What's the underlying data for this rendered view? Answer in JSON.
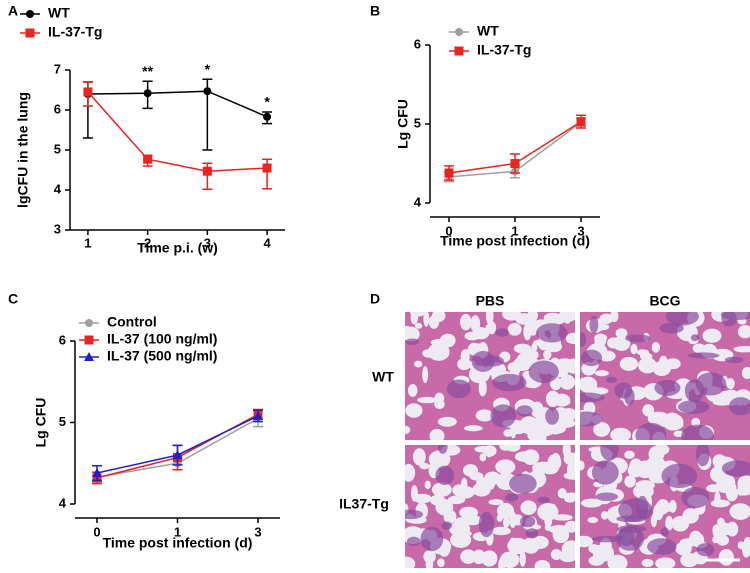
{
  "chart_data": [
    {
      "type": "line",
      "panel": "A",
      "x": [
        1,
        2,
        3,
        4
      ],
      "xlim": [
        0.7,
        4.3
      ],
      "xticks": [
        1,
        2,
        3,
        4
      ],
      "ylim": [
        3,
        7
      ],
      "yticks": [
        3,
        4,
        5,
        6,
        7
      ],
      "xlabel": "Time p.i. (w)",
      "ylabel": "lgCFU in the lung",
      "series": [
        {
          "name": "WT",
          "color": "#000000",
          "marker": "circle",
          "values": [
            6.4,
            6.42,
            6.47,
            5.83
          ],
          "error_low": [
            1.1,
            0.38,
            1.47,
            0.17
          ],
          "error_high": [
            0.3,
            0.3,
            0.3,
            0.12
          ]
        },
        {
          "name": "IL-37-Tg",
          "color": "#e8251f",
          "marker": "square",
          "values": [
            6.45,
            4.77,
            4.47,
            4.55
          ],
          "error_low": [
            0.35,
            0.17,
            0.45,
            0.52
          ],
          "error_high": [
            0.25,
            0.1,
            0.2,
            0.22
          ]
        }
      ],
      "annotations": [
        {
          "x": 2,
          "text": "**"
        },
        {
          "x": 3,
          "text": "*"
        },
        {
          "x": 4,
          "text": "*"
        }
      ]
    },
    {
      "type": "line",
      "panel": "B",
      "categories": [
        "0",
        "1",
        "3"
      ],
      "ylim": [
        4,
        6
      ],
      "yticks": [
        4,
        5,
        6
      ],
      "xlabel": "Time post infection (d)",
      "ylabel": "Lg CFU",
      "series": [
        {
          "name": "WT",
          "color": "#a0a0a0",
          "marker": "circle",
          "values": [
            4.33,
            4.4,
            5.02
          ],
          "error_low": [
            0.06,
            0.08,
            0.05
          ],
          "error_high": [
            0.06,
            0.08,
            0.05
          ]
        },
        {
          "name": "IL-37-Tg",
          "color": "#e8251f",
          "marker": "square",
          "values": [
            4.38,
            4.5,
            5.03
          ],
          "error_low": [
            0.09,
            0.12,
            0.08
          ],
          "error_high": [
            0.09,
            0.12,
            0.08
          ]
        }
      ]
    },
    {
      "type": "line",
      "panel": "C",
      "categories": [
        "0",
        "1",
        "3"
      ],
      "ylim": [
        4,
        6
      ],
      "yticks": [
        4,
        5,
        6
      ],
      "xlabel": "Time post infection (d)",
      "ylabel": "Lg CFU",
      "series": [
        {
          "name": "Control",
          "color": "#a0a0a0",
          "marker": "circle",
          "values": [
            4.33,
            4.5,
            5.05
          ],
          "error_low": [
            0.06,
            0.08,
            0.1
          ],
          "error_high": [
            0.06,
            0.08,
            0.1
          ]
        },
        {
          "name": "IL-37 (100 ng/ml)",
          "color": "#e8251f",
          "marker": "square",
          "values": [
            4.32,
            4.57,
            5.1
          ],
          "error_low": [
            0.07,
            0.15,
            0.06
          ],
          "error_high": [
            0.07,
            0.15,
            0.06
          ]
        },
        {
          "name": "IL-37 (500 ng/ml)",
          "color": "#1f1fd0",
          "marker": "triangle",
          "values": [
            4.38,
            4.6,
            5.08
          ],
          "error_low": [
            0.09,
            0.12,
            0.07
          ],
          "error_high": [
            0.09,
            0.12,
            0.07
          ]
        }
      ]
    }
  ],
  "histology": {
    "panel": "D",
    "columns": [
      "PBS",
      "BCG"
    ],
    "rows": [
      "WT",
      "IL37-Tg"
    ]
  }
}
